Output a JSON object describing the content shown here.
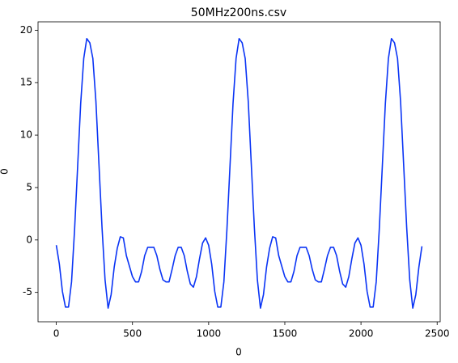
{
  "chart_data": {
    "type": "line",
    "title": "50MHz200ns.csv",
    "x_label": "0",
    "y_label": "0",
    "xlim": [
      -120,
      2520
    ],
    "xticks": [
      0,
      500,
      1000,
      1500,
      2000,
      2500
    ],
    "ylim": [
      -7.8,
      20.8
    ],
    "yticks": [
      -5,
      0,
      5,
      10,
      15,
      20
    ],
    "x": [
      0,
      20,
      40,
      60,
      80,
      100,
      120,
      140,
      160,
      180,
      200,
      220,
      240,
      260,
      280,
      300,
      320,
      340,
      360,
      380,
      400,
      420,
      440,
      460,
      480,
      500,
      520,
      540,
      560,
      580,
      600,
      620,
      640,
      660,
      680,
      700,
      720,
      740,
      760,
      780,
      800,
      820,
      840,
      860,
      880,
      900,
      920,
      940,
      960,
      980,
      1000,
      1020,
      1040,
      1060,
      1080,
      1100,
      1120,
      1140,
      1160,
      1180,
      1200,
      1220,
      1240,
      1260,
      1280,
      1300,
      1320,
      1340,
      1360,
      1380,
      1400,
      1420,
      1440,
      1460,
      1480,
      1500,
      1520,
      1540,
      1560,
      1580,
      1600,
      1620,
      1640,
      1660,
      1680,
      1700,
      1720,
      1740,
      1760,
      1780,
      1800,
      1820,
      1840,
      1860,
      1880,
      1900,
      1920,
      1940,
      1960,
      1980,
      2000,
      2020,
      2040,
      2060,
      2080,
      2100,
      2120,
      2140,
      2160,
      2180,
      2200,
      2220,
      2240,
      2260,
      2280,
      2300,
      2320,
      2340,
      2360,
      2380,
      2400
    ],
    "series": [
      {
        "color": "#0a34f5",
        "values": [
          -0.5,
          -2.3,
          -4.9,
          -6.4,
          -6.4,
          -4,
          1,
          7,
          13,
          17.3,
          19.2,
          18.8,
          17.3,
          13.2,
          7.2,
          1.2,
          -3.8,
          -6.5,
          -5.2,
          -2.6,
          -0.8,
          0.3,
          0.2,
          -1.5,
          -2.5,
          -3.5,
          -4,
          -4,
          -3,
          -1.5,
          -0.7,
          -0.7,
          -0.7,
          -1.5,
          -2.8,
          -3.8,
          -4,
          -4,
          -2.8,
          -1.5,
          -0.7,
          -0.7,
          -1.5,
          -3,
          -4.2,
          -4.5,
          -3.5,
          -1.8,
          -0.3,
          0.2,
          -0.5,
          -2.3,
          -4.9,
          -6.4,
          -6.4,
          -4,
          1,
          7,
          13,
          17.3,
          19.2,
          18.8,
          17.3,
          13.2,
          7.2,
          1.2,
          -3.8,
          -6.5,
          -5.2,
          -2.6,
          -0.8,
          0.3,
          0.2,
          -1.5,
          -2.5,
          -3.5,
          -4,
          -4,
          -3,
          -1.5,
          -0.7,
          -0.7,
          -0.7,
          -1.5,
          -2.8,
          -3.8,
          -4,
          -4,
          -2.8,
          -1.5,
          -0.7,
          -0.7,
          -1.5,
          -3,
          -4.2,
          -4.5,
          -3.5,
          -1.8,
          -0.3,
          0.2,
          -0.5,
          -2.3,
          -4.9,
          -6.4,
          -6.4,
          -4,
          1,
          7,
          13,
          17.3,
          19.2,
          18.8,
          17.3,
          13.2,
          7.2,
          1.2,
          -3.8,
          -6.5,
          -5.2,
          -2.6,
          -0.6
        ]
      }
    ]
  }
}
